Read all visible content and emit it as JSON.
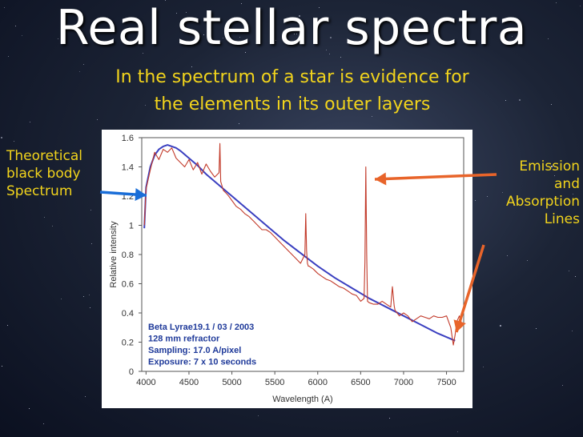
{
  "title": "Real stellar spectra",
  "subtitle_line1": "In the spectrum of a star is evidence for",
  "subtitle_line2": "the elements in its outer layers",
  "left_label": [
    "Theoretical",
    "black body",
    "Spectrum"
  ],
  "right_label": [
    "Emission",
    "and",
    "Absorption",
    "Lines"
  ],
  "colors": {
    "title": "#ffffff",
    "accent": "#f2d41c",
    "arrow": "#e8642a",
    "arrow_left": "#1a6ed8",
    "model": "#3a3fc0",
    "observed": "#c23a2a",
    "info": "#1f3a9a"
  },
  "chart_data": {
    "type": "line",
    "xlabel": "Wavelength (A)",
    "ylabel": "Relative intensity",
    "xlim": [
      3950,
      7700
    ],
    "ylim": [
      0,
      1.6
    ],
    "xticks": [
      4000,
      4500,
      5000,
      5500,
      6000,
      6500,
      7000,
      7500
    ],
    "yticks": [
      0,
      0.2,
      0.4,
      0.6,
      0.8,
      1,
      1.2,
      1.4,
      1.6
    ],
    "annotation": [
      "Beta Lyrae19.1 / 03 / 2003",
      "128 mm refractor",
      "Sampling: 17.0 A/pixel",
      "Exposure: 7 x 10 seconds"
    ],
    "series": [
      {
        "x": [
          3980,
          4000,
          4050,
          4100,
          4150,
          4200,
          4250,
          4300,
          4350,
          4400,
          4500,
          4600,
          4700,
          4800,
          4900,
          5000,
          5200,
          5400,
          5600,
          5800,
          6000,
          6200,
          6400,
          6600,
          6800,
          7000,
          7200,
          7400,
          7600
        ],
        "y": [
          0.98,
          1.26,
          1.4,
          1.48,
          1.52,
          1.54,
          1.55,
          1.54,
          1.53,
          1.51,
          1.46,
          1.41,
          1.35,
          1.3,
          1.25,
          1.2,
          1.1,
          1.0,
          0.9,
          0.81,
          0.72,
          0.64,
          0.57,
          0.5,
          0.44,
          0.38,
          0.32,
          0.26,
          0.21
        ]
      },
      {
        "x": [
          3980,
          4000,
          4050,
          4100,
          4150,
          4200,
          4250,
          4300,
          4350,
          4400,
          4450,
          4500,
          4550,
          4600,
          4650,
          4700,
          4750,
          4800,
          4850,
          4860,
          4870,
          4880,
          4900,
          4950,
          5000,
          5050,
          5100,
          5150,
          5200,
          5250,
          5300,
          5350,
          5400,
          5450,
          5500,
          5550,
          5600,
          5650,
          5700,
          5750,
          5800,
          5850,
          5860,
          5870,
          5880,
          5890,
          5900,
          5950,
          6000,
          6050,
          6100,
          6150,
          6200,
          6250,
          6300,
          6350,
          6400,
          6450,
          6500,
          6540,
          6550,
          6560,
          6570,
          6580,
          6600,
          6650,
          6700,
          6750,
          6800,
          6850,
          6870,
          6890,
          6900,
          6950,
          7000,
          7050,
          7100,
          7150,
          7200,
          7250,
          7300,
          7350,
          7400,
          7450,
          7500,
          7550,
          7580,
          7600,
          7620,
          7650,
          7680
        ],
        "y": [
          1.0,
          1.25,
          1.38,
          1.5,
          1.45,
          1.52,
          1.5,
          1.53,
          1.46,
          1.43,
          1.4,
          1.45,
          1.38,
          1.43,
          1.35,
          1.42,
          1.37,
          1.33,
          1.36,
          1.56,
          1.3,
          1.28,
          1.24,
          1.21,
          1.17,
          1.13,
          1.11,
          1.08,
          1.06,
          1.03,
          1.0,
          0.97,
          0.97,
          0.95,
          0.92,
          0.89,
          0.86,
          0.83,
          0.8,
          0.77,
          0.74,
          0.8,
          1.08,
          0.83,
          0.74,
          0.72,
          0.72,
          0.7,
          0.67,
          0.65,
          0.63,
          0.62,
          0.6,
          0.58,
          0.57,
          0.55,
          0.53,
          0.52,
          0.48,
          0.5,
          0.75,
          1.4,
          0.8,
          0.48,
          0.47,
          0.46,
          0.46,
          0.48,
          0.46,
          0.44,
          0.58,
          0.45,
          0.42,
          0.38,
          0.4,
          0.38,
          0.34,
          0.36,
          0.38,
          0.37,
          0.36,
          0.38,
          0.37,
          0.37,
          0.38,
          0.3,
          0.18,
          0.25,
          0.34,
          0.38,
          0.32
        ]
      }
    ]
  }
}
